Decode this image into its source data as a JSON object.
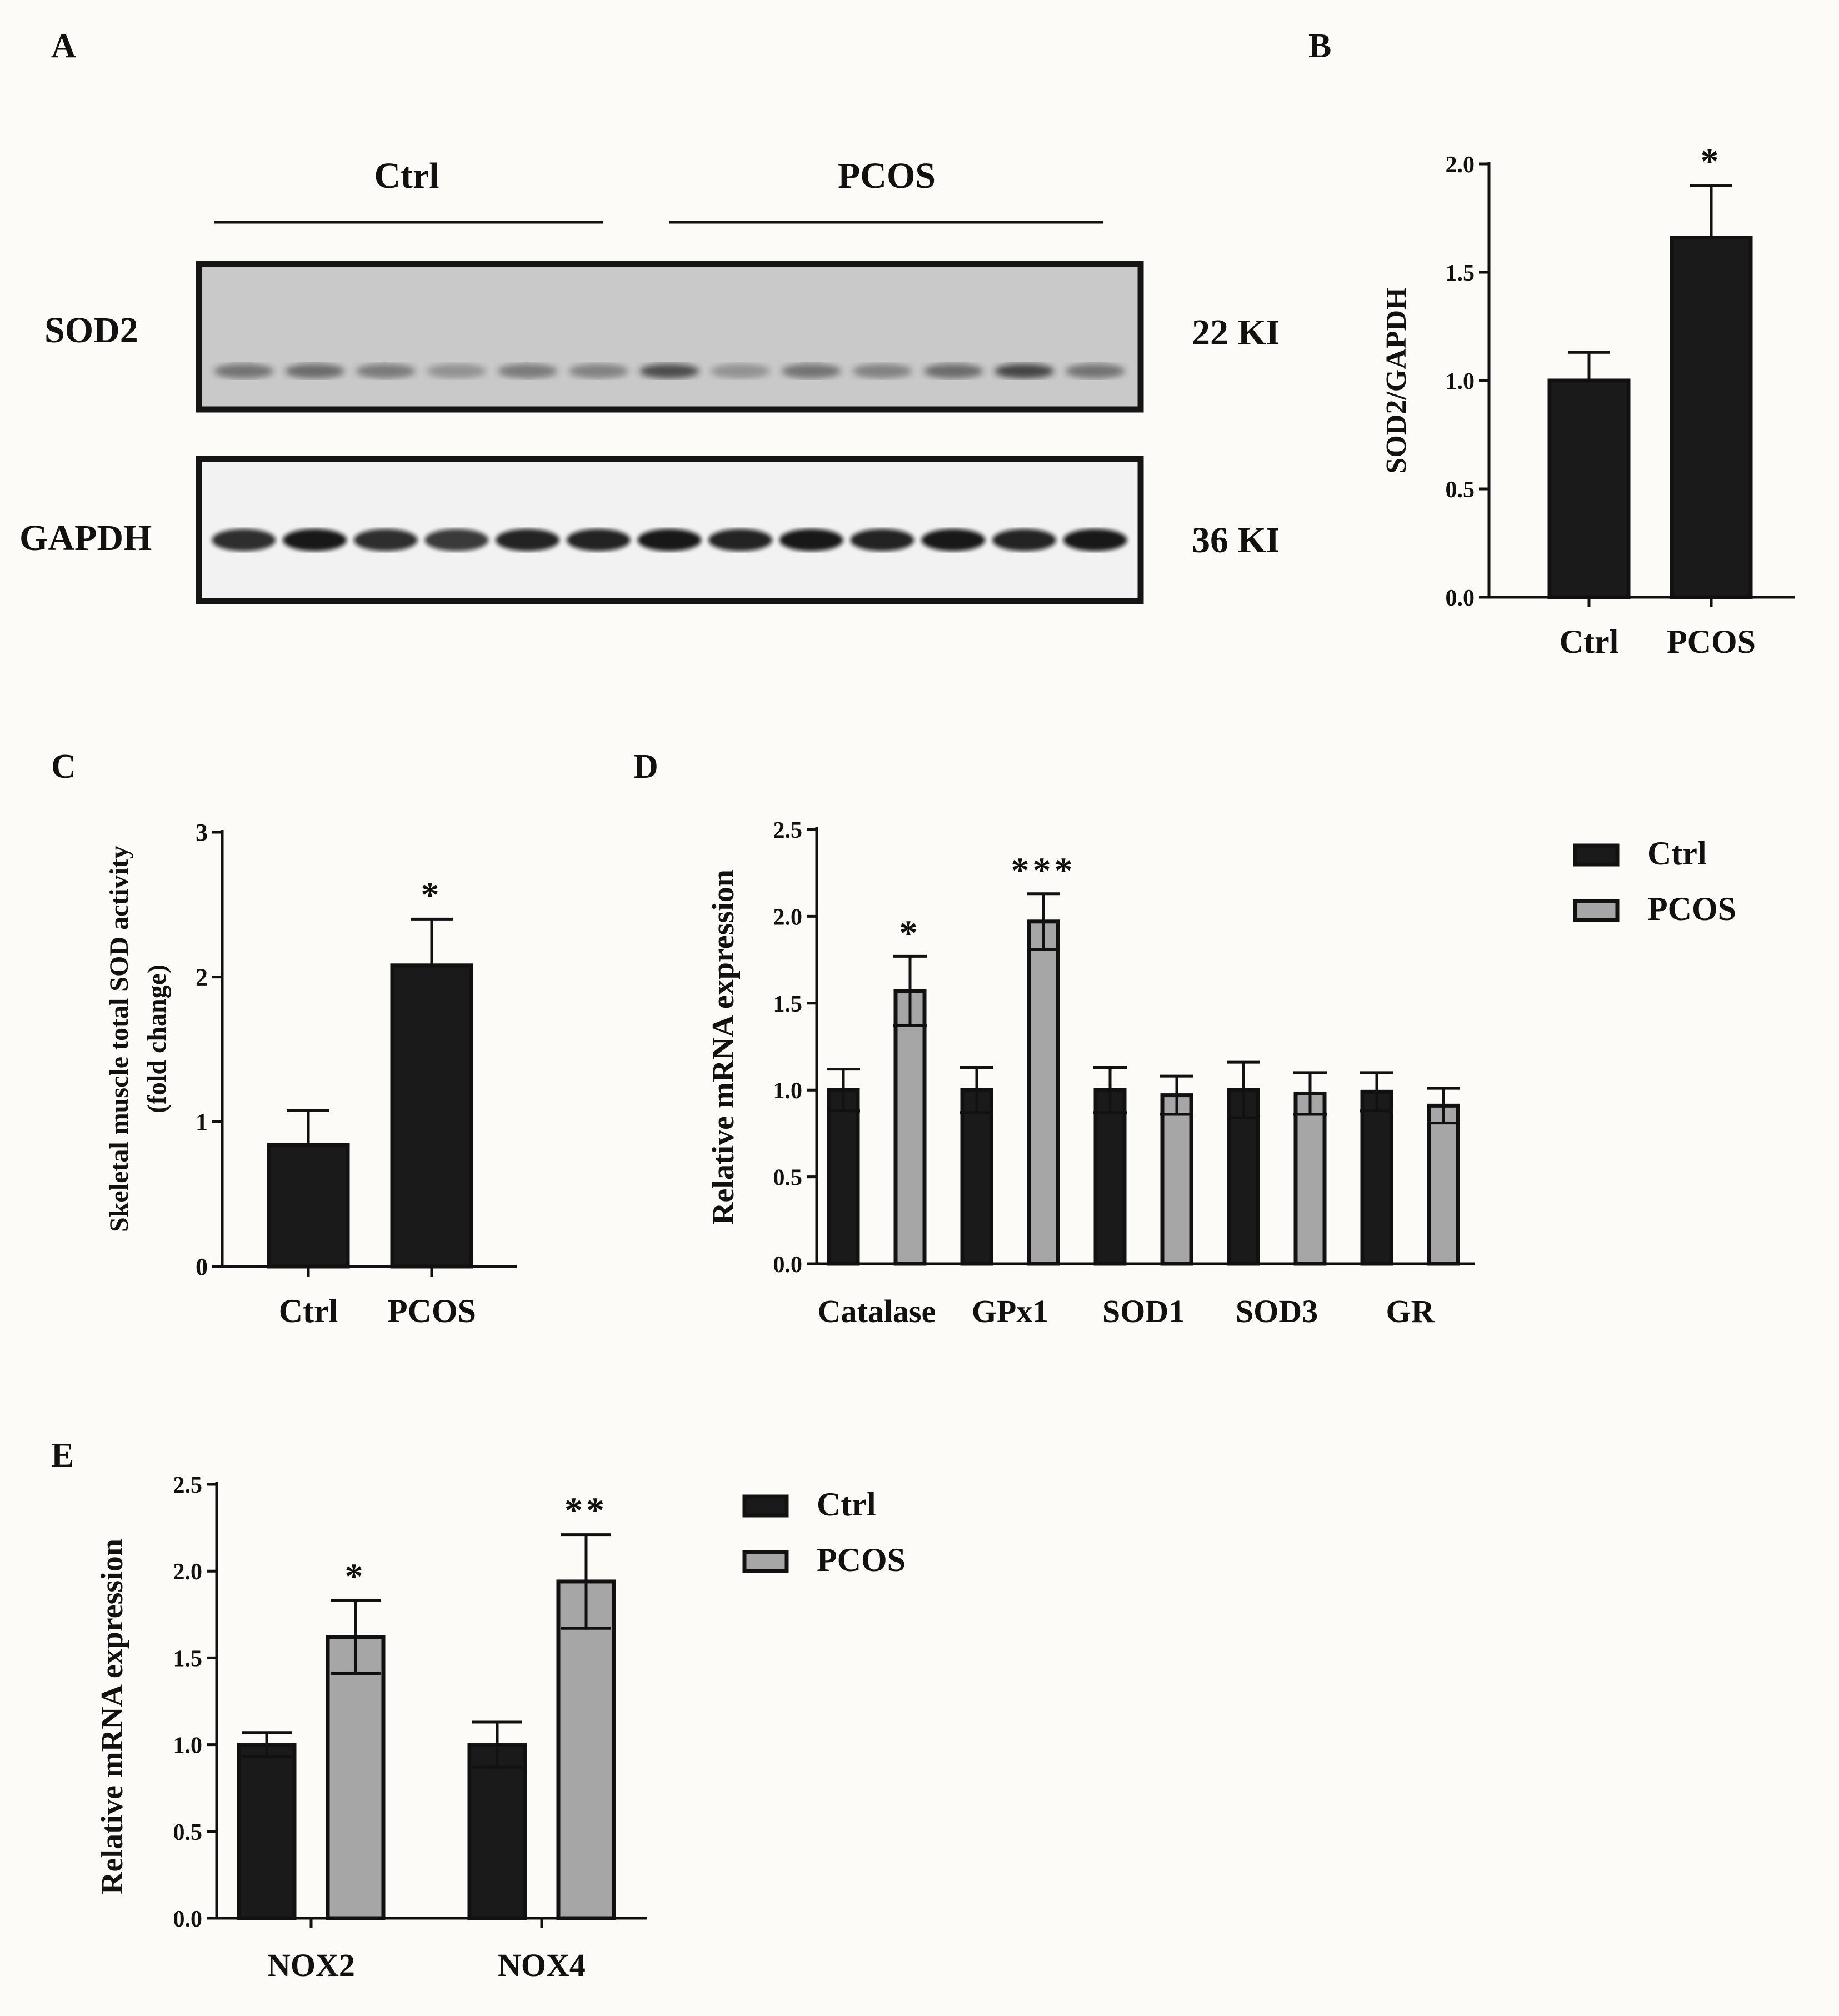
{
  "panels": {
    "a": "A",
    "b": "B",
    "c": "C",
    "d": "D",
    "e": "E"
  },
  "blot": {
    "group_labels": [
      "Ctrl",
      "PCOS"
    ],
    "rows": [
      {
        "label": "SOD2",
        "size": "22 KDa"
      },
      {
        "label": "GAPDH",
        "size": "36 KDa"
      }
    ],
    "lanes": 13,
    "sod2_intensity": [
      0.55,
      0.6,
      0.5,
      0.35,
      0.5,
      0.45,
      0.8,
      0.35,
      0.55,
      0.45,
      0.6,
      0.85,
      0.55
    ],
    "gapdh_intensity": [
      0.85,
      0.95,
      0.85,
      0.8,
      0.9,
      0.9,
      0.95,
      0.9,
      0.95,
      0.9,
      0.95,
      0.9,
      0.95
    ]
  },
  "colors": {
    "ctrl": "#1a1a1a",
    "pcos": "#a6a6a6"
  },
  "chart_data": [
    {
      "id": "B",
      "type": "bar",
      "categories": [
        "Ctrl",
        "PCOS"
      ],
      "values": [
        1.0,
        1.66
      ],
      "errors": [
        0.13,
        0.24
      ],
      "significance": [
        "",
        "*"
      ],
      "ylabel": "SOD2/GAPDH",
      "ylim": [
        0,
        2.0
      ],
      "yticks": [
        "0.0",
        "0.5",
        "1.0",
        "1.5",
        "2.0"
      ],
      "grid": false
    },
    {
      "id": "C",
      "type": "bar",
      "categories": [
        "Ctrl",
        "PCOS"
      ],
      "values": [
        0.84,
        2.08
      ],
      "errors": [
        0.24,
        0.32
      ],
      "significance": [
        "",
        "*"
      ],
      "ylabel_lines": [
        "Skeletal muscle total SOD activity",
        "(fold change)"
      ],
      "ylim": [
        0,
        3
      ],
      "yticks": [
        "0",
        "1",
        "2",
        "3"
      ],
      "grid": false
    },
    {
      "id": "D",
      "type": "bar",
      "categories": [
        "Catalase",
        "GPx1",
        "SOD1",
        "SOD3",
        "GR"
      ],
      "series": [
        {
          "name": "Ctrl",
          "values": [
            1.0,
            1.0,
            1.0,
            1.0,
            0.99
          ],
          "errors": [
            0.12,
            0.13,
            0.13,
            0.16,
            0.11
          ]
        },
        {
          "name": "PCOS",
          "values": [
            1.57,
            1.97,
            0.97,
            0.98,
            0.91
          ],
          "errors": [
            0.2,
            0.16,
            0.11,
            0.12,
            0.1
          ]
        }
      ],
      "significance": [
        "*",
        "***",
        "",
        "",
        ""
      ],
      "ylabel": "Relative mRNA expression",
      "ylim": [
        0,
        2.5
      ],
      "yticks": [
        "0.0",
        "0.5",
        "1.0",
        "1.5",
        "2.0",
        "2.5"
      ],
      "legend_position": "top-right",
      "grid": false
    },
    {
      "id": "E",
      "type": "bar",
      "categories": [
        "NOX2",
        "NOX4"
      ],
      "series": [
        {
          "name": "Ctrl",
          "values": [
            1.0,
            1.0
          ],
          "errors": [
            0.07,
            0.13
          ]
        },
        {
          "name": "PCOS",
          "values": [
            1.62,
            1.94
          ],
          "errors": [
            0.21,
            0.27
          ]
        }
      ],
      "significance": [
        "*",
        "**"
      ],
      "ylabel": "Relative mRNA expression",
      "ylim": [
        0,
        2.5
      ],
      "yticks": [
        "0.0",
        "0.5",
        "1.0",
        "1.5",
        "2.0",
        "2.5"
      ],
      "legend_position": "top-right",
      "grid": false
    }
  ]
}
